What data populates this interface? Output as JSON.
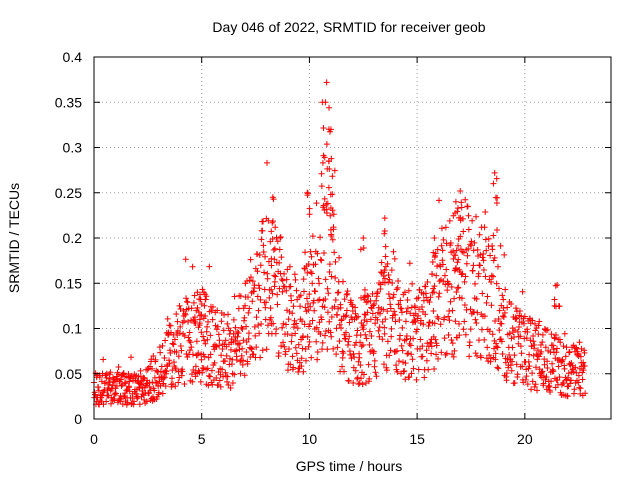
{
  "chart_data": {
    "type": "scatter",
    "title": "Day 046 of 2022, SRMTID for receiver geob",
    "xlabel": "GPS time / hours",
    "ylabel": "SRMTID / TECUs",
    "xlim": [
      0,
      24
    ],
    "ylim": [
      0,
      0.4
    ],
    "xticks": [
      0,
      5,
      10,
      15,
      20
    ],
    "xtick_labels": [
      "0",
      "5",
      "10",
      "15",
      "20"
    ],
    "yticks": [
      0,
      0.05,
      0.1,
      0.15,
      0.2,
      0.25,
      0.3,
      0.35,
      0.4
    ],
    "ytick_labels": [
      "0",
      "0.05",
      "0.1",
      "0.15",
      "0.2",
      "0.25",
      "0.3",
      "0.35",
      "0.4"
    ],
    "grid": true,
    "marker": "plus",
    "color": "#ff0000",
    "series": [
      {
        "name": "SRMTID",
        "x_range": [
          0.0,
          22.8
        ],
        "trend": [
          [
            0.0,
            0.035
          ],
          [
            0.5,
            0.033
          ],
          [
            1.0,
            0.035
          ],
          [
            1.5,
            0.032
          ],
          [
            2.0,
            0.033
          ],
          [
            2.5,
            0.04
          ],
          [
            3.0,
            0.05
          ],
          [
            3.5,
            0.07
          ],
          [
            4.0,
            0.082
          ],
          [
            4.5,
            0.09
          ],
          [
            5.0,
            0.085
          ],
          [
            5.5,
            0.08
          ],
          [
            6.0,
            0.078
          ],
          [
            6.5,
            0.075
          ],
          [
            7.0,
            0.095
          ],
          [
            7.5,
            0.13
          ],
          [
            8.0,
            0.15
          ],
          [
            8.5,
            0.14
          ],
          [
            9.0,
            0.115
          ],
          [
            9.5,
            0.1
          ],
          [
            10.0,
            0.12
          ],
          [
            10.5,
            0.15
          ],
          [
            11.0,
            0.17
          ],
          [
            11.5,
            0.1
          ],
          [
            12.0,
            0.085
          ],
          [
            12.5,
            0.085
          ],
          [
            13.0,
            0.095
          ],
          [
            13.5,
            0.12
          ],
          [
            14.0,
            0.105
          ],
          [
            14.5,
            0.095
          ],
          [
            15.0,
            0.09
          ],
          [
            15.5,
            0.1
          ],
          [
            16.0,
            0.13
          ],
          [
            16.5,
            0.145
          ],
          [
            17.0,
            0.16
          ],
          [
            17.5,
            0.15
          ],
          [
            18.0,
            0.14
          ],
          [
            18.5,
            0.13
          ],
          [
            19.0,
            0.1
          ],
          [
            19.5,
            0.08
          ],
          [
            20.0,
            0.075
          ],
          [
            20.5,
            0.07
          ],
          [
            21.0,
            0.065
          ],
          [
            21.5,
            0.06
          ],
          [
            22.0,
            0.055
          ],
          [
            22.8,
            0.05
          ]
        ],
        "peaks": [
          [
            8.3,
            0.245
          ],
          [
            10.8,
            0.372
          ],
          [
            10.6,
            0.35
          ],
          [
            11.0,
            0.32
          ],
          [
            10.9,
            0.285
          ],
          [
            13.5,
            0.222
          ],
          [
            17.0,
            0.252
          ],
          [
            18.6,
            0.272
          ],
          [
            4.8,
            0.14
          ],
          [
            5.1,
            0.14
          ],
          [
            21.5,
            0.148
          ],
          [
            15.8,
            0.2
          ],
          [
            16.8,
            0.24
          ],
          [
            9.9,
            0.25
          ],
          [
            12.5,
            0.2
          ]
        ]
      }
    ]
  }
}
